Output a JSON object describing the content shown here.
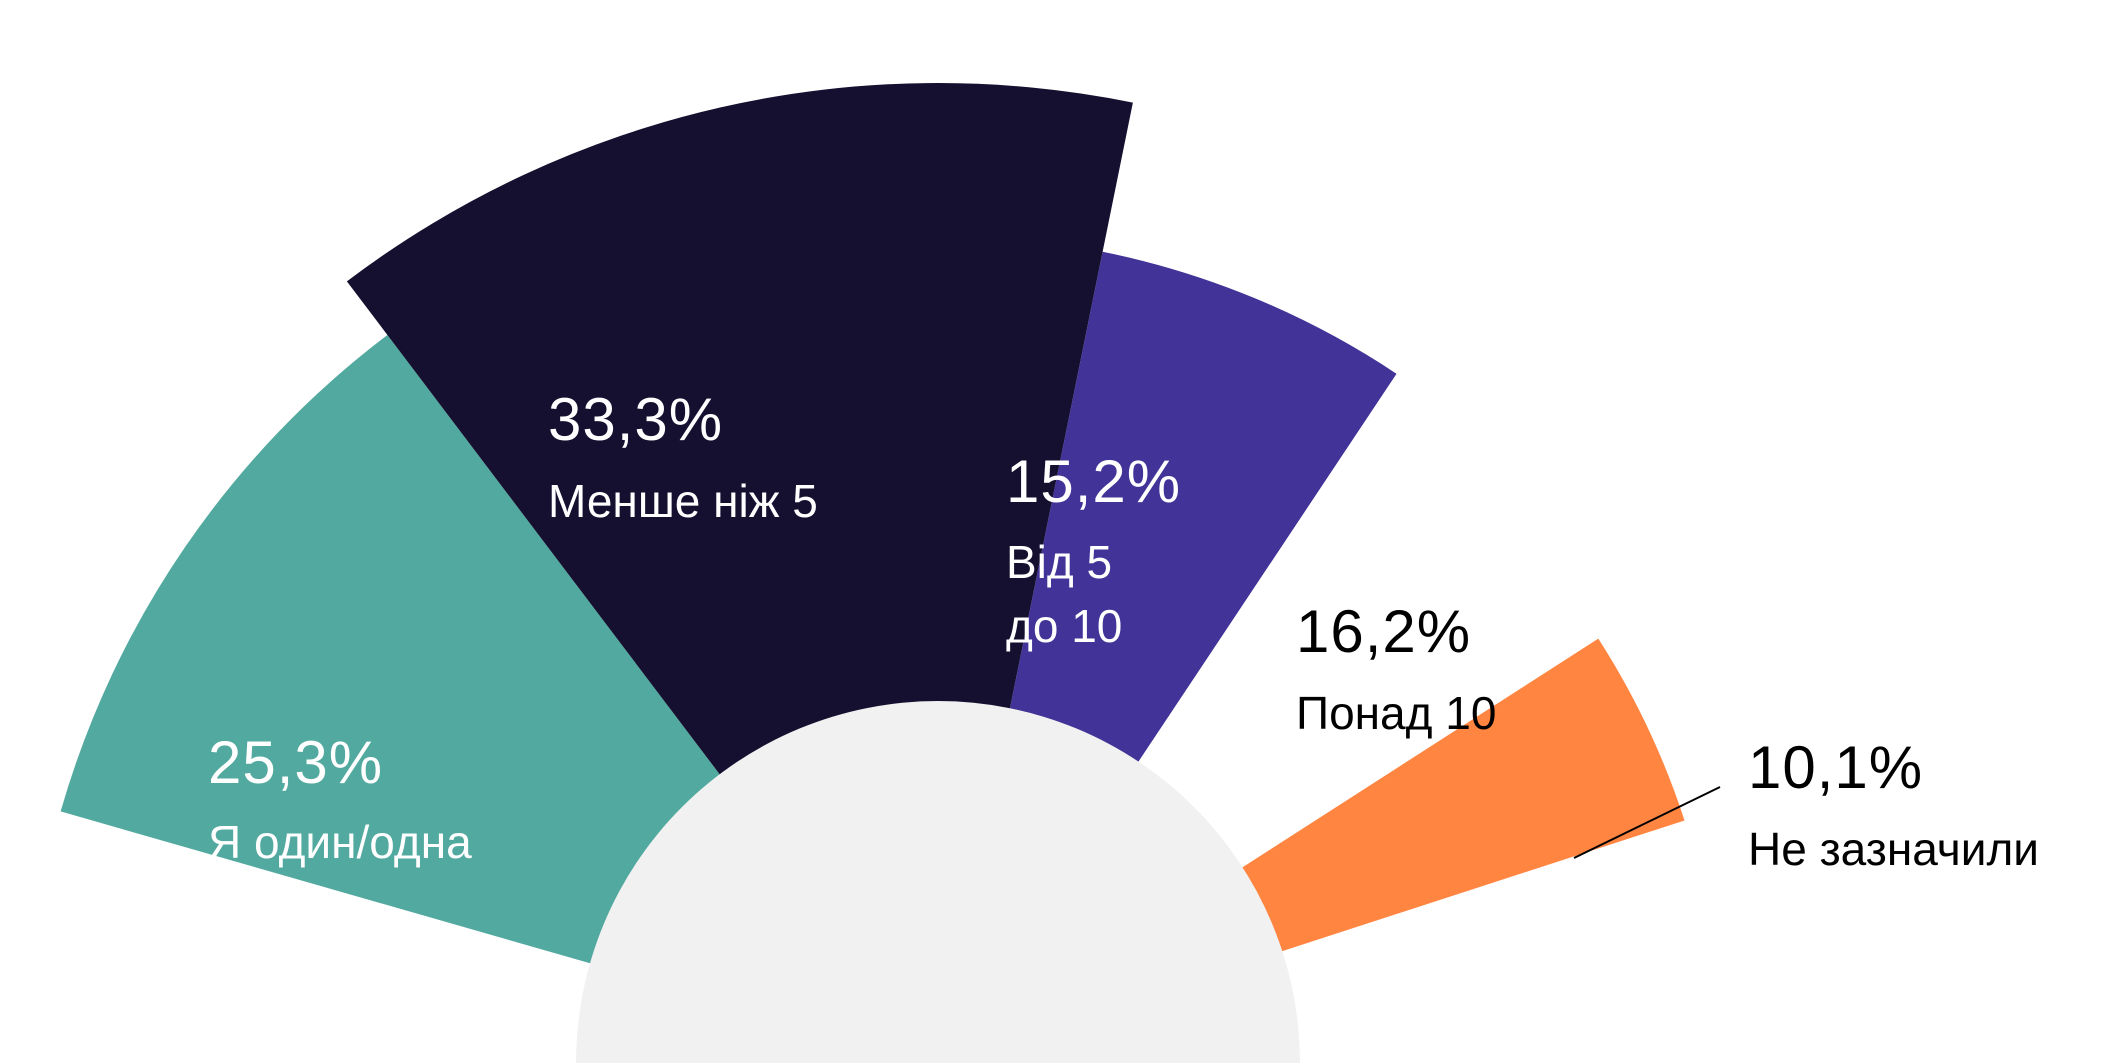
{
  "chart_data": {
    "type": "pie",
    "variant": "semicircle-rose",
    "slices": [
      {
        "label": "Я один/одна",
        "value": 25.3,
        "value_label": "25,3%",
        "color": "#52a99f"
      },
      {
        "label": "Менше ніж 5",
        "value": 33.3,
        "value_label": "33,3%",
        "color": "#161030"
      },
      {
        "label": "Від 5 до 10",
        "value": 15.2,
        "value_label": "15,2%",
        "color": "#413397"
      },
      {
        "label": "Понад 10",
        "value": 16.2,
        "value_label": "16,2%",
        "color": "#ffffff"
      },
      {
        "label": "Не зазначили",
        "value": 10.1,
        "value_label": "10,1%",
        "color": "#ff8540"
      }
    ],
    "center_color": "#f1f1f1"
  }
}
